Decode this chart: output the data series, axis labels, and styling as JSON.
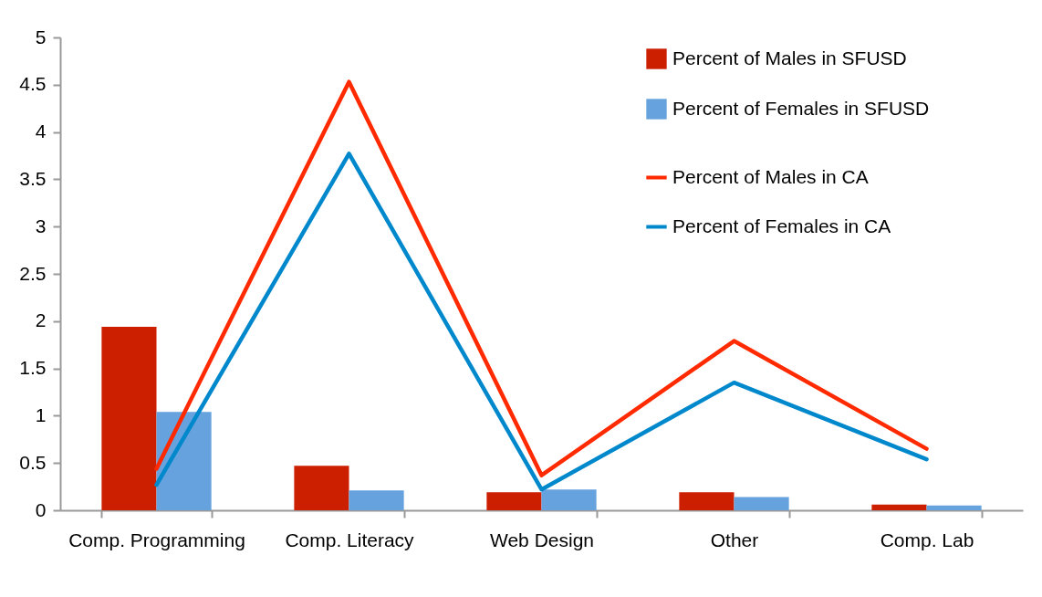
{
  "chart_data": {
    "type": "bar",
    "categories": [
      "Comp. Programming",
      "Comp. Literacy",
      "Web Design",
      "Other",
      "Comp. Lab"
    ],
    "series": [
      {
        "name": "Percent of Males in SFUSD",
        "color": "#cc1f00",
        "values": [
          1.94,
          0.47,
          0.19,
          0.19,
          0.06
        ]
      },
      {
        "name": "Percent of Females in SFUSD",
        "color": "#66a2dd",
        "values": [
          1.04,
          0.21,
          0.22,
          0.14,
          0.05
        ]
      },
      {
        "name": "Percent of Males in CA",
        "type": "line",
        "color": "#ff2a00",
        "values": [
          0.44,
          4.53,
          0.37,
          1.79,
          0.65
        ]
      },
      {
        "name": "Percent of Females in CA",
        "type": "line",
        "color": "#0088cc",
        "values": [
          0.27,
          3.77,
          0.22,
          1.35,
          0.54
        ]
      }
    ],
    "ylim": [
      0,
      5
    ],
    "yticks": [
      0,
      0.5,
      1,
      1.5,
      2,
      2.5,
      3,
      3.5,
      4,
      4.5,
      5
    ],
    "grid": false,
    "legend": "top right"
  }
}
